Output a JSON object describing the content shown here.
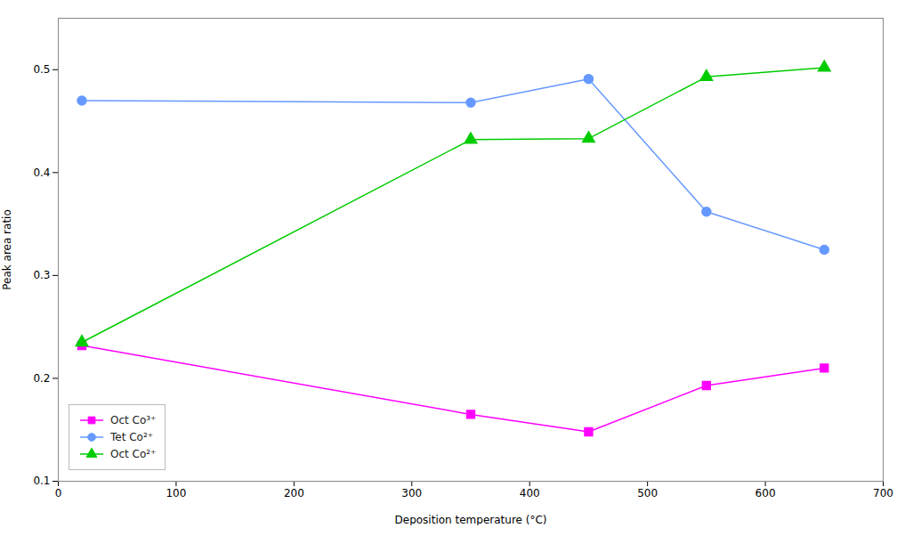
{
  "chart_data": {
    "type": "line",
    "xlabel": "Deposition temperature (°C)",
    "ylabel": "Peak area ratio",
    "x": [
      20,
      350,
      450,
      550,
      650
    ],
    "series": [
      {
        "name": "Oct Co³⁺",
        "color": "#ff00ff",
        "marker": "square",
        "values": [
          0.232,
          0.165,
          0.148,
          0.193,
          0.21
        ]
      },
      {
        "name": "Tet Co²⁺",
        "color": "#6699ff",
        "marker": "circle",
        "values": [
          0.47,
          0.468,
          0.491,
          0.362,
          0.325
        ]
      },
      {
        "name": "Oct Co²⁺",
        "color": "#00cc00",
        "marker": "triangle",
        "values": [
          0.235,
          0.432,
          0.433,
          0.493,
          0.502
        ]
      }
    ],
    "xlim": [
      0,
      700
    ],
    "ylim": [
      0.1,
      0.55
    ],
    "xticks": [
      0,
      100,
      200,
      300,
      400,
      500,
      600,
      700
    ],
    "yticks": [
      0.1,
      0.2,
      0.3,
      0.4,
      0.5
    ],
    "grid": false,
    "legend": "lower left"
  }
}
